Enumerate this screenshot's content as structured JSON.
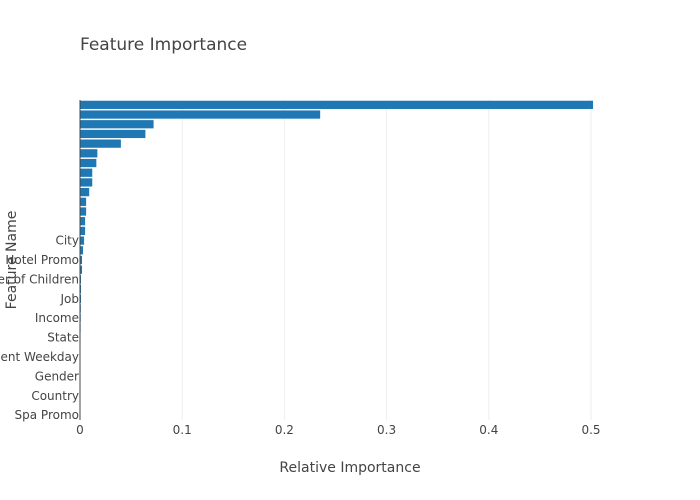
{
  "chart_data": {
    "type": "bar",
    "orientation": "horizontal",
    "title": "Feature Importance",
    "xlabel": "Relative Importance",
    "ylabel": "Feature Name",
    "xlim": [
      0,
      0.52
    ],
    "x_ticks": [
      0,
      0.1,
      0.2,
      0.3,
      0.4,
      0.5
    ],
    "x_tick_labels": [
      "0",
      "0.1",
      "0.2",
      "0.3",
      "0.4",
      "0.5"
    ],
    "grid": true,
    "bar_color": "#1f77b4",
    "categories": [
      "",
      "",
      "",
      "",
      "",
      "",
      "",
      "",
      "",
      "",
      "",
      "",
      "",
      "",
      "City",
      "",
      "Hotel Promo",
      "",
      "Number of Children",
      "",
      "Job",
      "",
      "Income",
      "",
      "State",
      "",
      "Retirement Weekday",
      "",
      "Gender",
      "",
      "Country",
      "",
      "Spa Promo"
    ],
    "values": [
      0.502,
      0.235,
      0.072,
      0.064,
      0.04,
      0.017,
      0.016,
      0.012,
      0.012,
      0.009,
      0.006,
      0.006,
      0.005,
      0.005,
      0.004,
      0.003,
      0.002,
      0.002,
      0.001,
      0.001,
      0.001,
      0.0008,
      0.0007,
      0.0006,
      0.0005,
      0.0004,
      0.0003,
      0.0003,
      0.0002,
      0.0002,
      0.0001,
      0.0001,
      0.0001
    ]
  }
}
